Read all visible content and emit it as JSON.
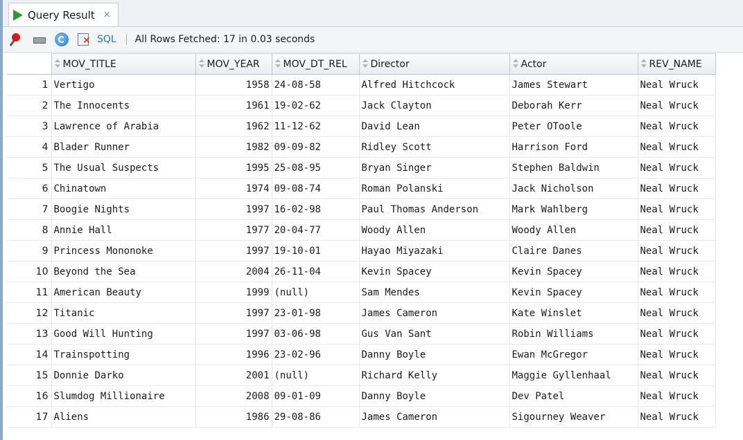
{
  "tab": {
    "title": "Query Result",
    "close": "×"
  },
  "toolbar": {
    "sql_label": "SQL",
    "separator": "|",
    "status": "All Rows Fetched: 17 in 0.03 seconds"
  },
  "columns": [
    "MOV_TITLE",
    "MOV_YEAR",
    "MOV_DT_REL",
    "Director",
    "Actor",
    "REV_NAME"
  ],
  "rows": [
    {
      "n": "1",
      "title": "Vertigo",
      "year": "1958",
      "rel": "24-08-58",
      "director": "Alfred Hitchcock",
      "actor": "James Stewart",
      "rev": "Neal Wruck"
    },
    {
      "n": "2",
      "title": "The Innocents",
      "year": "1961",
      "rel": "19-02-62",
      "director": "Jack Clayton",
      "actor": "Deborah Kerr",
      "rev": "Neal Wruck"
    },
    {
      "n": "3",
      "title": "Lawrence of Arabia",
      "year": "1962",
      "rel": "11-12-62",
      "director": "David Lean",
      "actor": "Peter OToole",
      "rev": "Neal Wruck"
    },
    {
      "n": "4",
      "title": "Blader Runner",
      "year": "1982",
      "rel": "09-09-82",
      "director": "Ridley Scott",
      "actor": "Harrison Ford",
      "rev": "Neal Wruck"
    },
    {
      "n": "5",
      "title": "The Usual Suspects",
      "year": "1995",
      "rel": "25-08-95",
      "director": "Bryan Singer",
      "actor": "Stephen Baldwin",
      "rev": "Neal Wruck"
    },
    {
      "n": "6",
      "title": "Chinatown",
      "year": "1974",
      "rel": "09-08-74",
      "director": "Roman Polanski",
      "actor": "Jack Nicholson",
      "rev": "Neal Wruck"
    },
    {
      "n": "7",
      "title": "Boogie Nights",
      "year": "1997",
      "rel": "16-02-98",
      "director": "Paul Thomas Anderson",
      "actor": "Mark Wahlberg",
      "rev": "Neal Wruck"
    },
    {
      "n": "8",
      "title": "Annie Hall",
      "year": "1977",
      "rel": "20-04-77",
      "director": "Woody Allen",
      "actor": "Woody Allen",
      "rev": "Neal Wruck"
    },
    {
      "n": "9",
      "title": "Princess Mononoke",
      "year": "1997",
      "rel": "19-10-01",
      "director": "Hayao Miyazaki",
      "actor": "Claire Danes",
      "rev": "Neal Wruck"
    },
    {
      "n": "10",
      "title": "Beyond the Sea",
      "year": "2004",
      "rel": "26-11-04",
      "director": "Kevin Spacey",
      "actor": "Kevin Spacey",
      "rev": "Neal Wruck"
    },
    {
      "n": "11",
      "title": "American Beauty",
      "year": "1999",
      "rel": "(null)",
      "director": "Sam Mendes",
      "actor": "Kevin Spacey",
      "rev": "Neal Wruck"
    },
    {
      "n": "12",
      "title": "Titanic",
      "year": "1997",
      "rel": "23-01-98",
      "director": "James Cameron",
      "actor": "Kate Winslet",
      "rev": "Neal Wruck"
    },
    {
      "n": "13",
      "title": "Good Will Hunting",
      "year": "1997",
      "rel": "03-06-98",
      "director": "Gus Van Sant",
      "actor": "Robin Williams",
      "rev": "Neal Wruck"
    },
    {
      "n": "14",
      "title": "Trainspotting",
      "year": "1996",
      "rel": "23-02-96",
      "director": "Danny Boyle",
      "actor": "Ewan McGregor",
      "rev": "Neal Wruck"
    },
    {
      "n": "15",
      "title": "Donnie Darko",
      "year": "2001",
      "rel": "(null)",
      "director": "Richard Kelly",
      "actor": "Maggie Gyllenhaal",
      "rev": "Neal Wruck"
    },
    {
      "n": "16",
      "title": "Slumdog Millionaire",
      "year": "2008",
      "rel": "09-01-09",
      "director": "Danny Boyle",
      "actor": "Dev Patel",
      "rev": "Neal Wruck"
    },
    {
      "n": "17",
      "title": "Aliens",
      "year": "1986",
      "rel": "29-08-86",
      "director": "James Cameron",
      "actor": "Sigourney Weaver",
      "rev": "Neal Wruck"
    }
  ]
}
